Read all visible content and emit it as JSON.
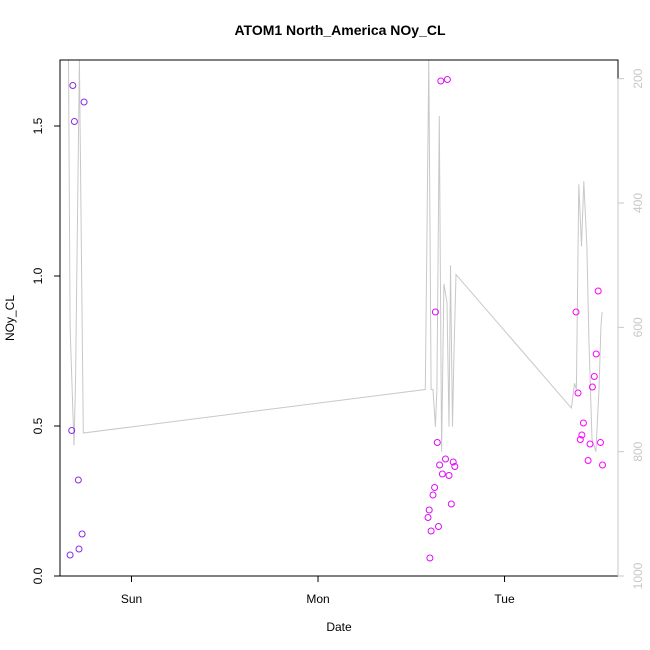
{
  "chart_data": {
    "type": "scatter",
    "title": "ATOM1 North_America NOy_CL",
    "xlabel": "Date",
    "ylabel": "NOy_CL",
    "x_ticks": [
      {
        "label": "Sun",
        "value": 0
      },
      {
        "label": "Mon",
        "value": 24
      },
      {
        "label": "Tue",
        "value": 48
      }
    ],
    "xlim": [
      -9.2,
      62.6
    ],
    "ylim": [
      0,
      1.72
    ],
    "y_ticks": [
      0.0,
      0.5,
      1.0,
      1.5
    ],
    "y_tick_labels": [
      "0.0",
      "0.5",
      "1.0",
      "1.5"
    ],
    "y2lim": [
      1000,
      170
    ],
    "y2_ticks": [
      200,
      400,
      600,
      800,
      1000
    ],
    "y2_tick_labels": [
      "200",
      "400",
      "600",
      "800",
      "1000"
    ],
    "colors": {
      "axis": "#000000",
      "secondary_axis": "#c8c8c8",
      "line": "#c8c8c8",
      "points_early": "#8a2be2",
      "points_late": "#ff00ff"
    },
    "points": [
      {
        "x": -7.9,
        "y": 0.07
      },
      {
        "x": -7.7,
        "y": 0.485
      },
      {
        "x": -7.55,
        "y": 1.635
      },
      {
        "x": -7.35,
        "y": 1.515
      },
      {
        "x": -6.85,
        "y": 0.32
      },
      {
        "x": -6.75,
        "y": 0.09
      },
      {
        "x": -6.35,
        "y": 0.14
      },
      {
        "x": -6.1,
        "y": 1.58
      },
      {
        "x": 38.15,
        "y": 0.195
      },
      {
        "x": 38.3,
        "y": 0.22
      },
      {
        "x": 38.4,
        "y": 0.06
      },
      {
        "x": 38.55,
        "y": 0.15
      },
      {
        "x": 38.8,
        "y": 0.27
      },
      {
        "x": 39.0,
        "y": 0.295
      },
      {
        "x": 39.1,
        "y": 0.88
      },
      {
        "x": 39.35,
        "y": 0.445
      },
      {
        "x": 39.5,
        "y": 0.165
      },
      {
        "x": 39.65,
        "y": 0.37
      },
      {
        "x": 39.8,
        "y": 1.65
      },
      {
        "x": 40.0,
        "y": 0.34
      },
      {
        "x": 40.4,
        "y": 0.39
      },
      {
        "x": 40.65,
        "y": 1.655
      },
      {
        "x": 40.85,
        "y": 0.335
      },
      {
        "x": 41.15,
        "y": 0.24
      },
      {
        "x": 41.4,
        "y": 0.38
      },
      {
        "x": 41.6,
        "y": 0.365
      },
      {
        "x": 57.2,
        "y": 0.88
      },
      {
        "x": 57.45,
        "y": 0.61
      },
      {
        "x": 57.75,
        "y": 0.455
      },
      {
        "x": 57.95,
        "y": 0.47
      },
      {
        "x": 58.15,
        "y": 0.51
      },
      {
        "x": 58.75,
        "y": 0.385
      },
      {
        "x": 59.0,
        "y": 0.44
      },
      {
        "x": 59.3,
        "y": 0.63
      },
      {
        "x": 59.55,
        "y": 0.665
      },
      {
        "x": 59.8,
        "y": 0.74
      },
      {
        "x": 60.05,
        "y": 0.95
      },
      {
        "x": 60.35,
        "y": 0.445
      },
      {
        "x": 60.6,
        "y": 0.37
      }
    ],
    "pressure_line": [
      {
        "x": -8.1,
        "y2": 170
      },
      {
        "x": -7.9,
        "y2": 600
      },
      {
        "x": -7.4,
        "y2": 790
      },
      {
        "x": -7.2,
        "y2": 690
      },
      {
        "x": -6.7,
        "y2": 170
      },
      {
        "x": -6.2,
        "y2": 770
      },
      {
        "x": 37.8,
        "y2": 700
      },
      {
        "x": 38.25,
        "y2": 170
      },
      {
        "x": 38.55,
        "y2": 700
      },
      {
        "x": 38.8,
        "y2": 700
      },
      {
        "x": 39.1,
        "y2": 760
      },
      {
        "x": 39.3,
        "y2": 700
      },
      {
        "x": 39.6,
        "y2": 260
      },
      {
        "x": 39.9,
        "y2": 800
      },
      {
        "x": 40.2,
        "y2": 530
      },
      {
        "x": 40.6,
        "y2": 560
      },
      {
        "x": 40.85,
        "y2": 760
      },
      {
        "x": 41.05,
        "y2": 500
      },
      {
        "x": 41.3,
        "y2": 760
      },
      {
        "x": 41.5,
        "y2": 640
      },
      {
        "x": 41.75,
        "y2": 515
      },
      {
        "x": 56.6,
        "y2": 730
      },
      {
        "x": 57.0,
        "y2": 690
      },
      {
        "x": 57.25,
        "y2": 700
      },
      {
        "x": 57.55,
        "y2": 370
      },
      {
        "x": 57.9,
        "y2": 470
      },
      {
        "x": 58.2,
        "y2": 365
      },
      {
        "x": 58.6,
        "y2": 470
      },
      {
        "x": 58.85,
        "y2": 620
      },
      {
        "x": 59.25,
        "y2": 780
      },
      {
        "x": 59.75,
        "y2": 800
      },
      {
        "x": 60.15,
        "y2": 700
      },
      {
        "x": 60.4,
        "y2": 600
      },
      {
        "x": 60.55,
        "y2": 575
      }
    ]
  }
}
